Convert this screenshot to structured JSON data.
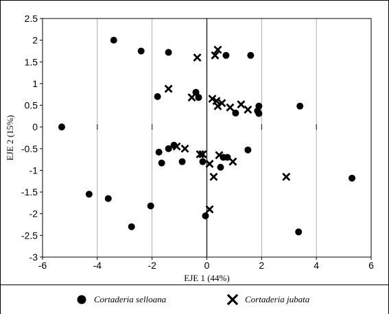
{
  "chart_data": {
    "type": "scatter",
    "xlabel": "EJE 1 (44%)",
    "ylabel": "EJE 2 (15%)",
    "xlim": [
      -6,
      6
    ],
    "ylim": [
      -3,
      2.5
    ],
    "xticks": [
      -6,
      -4,
      -2,
      0,
      2,
      4,
      6
    ],
    "yticks": [
      -3,
      -2.5,
      -2,
      -1.5,
      -1,
      -0.5,
      0,
      0.5,
      1,
      1.5,
      2,
      2.5
    ],
    "grid": true,
    "legend_position": "bottom",
    "series": [
      {
        "name": "Cortaderia selloana",
        "marker": "circle",
        "color": "#000000",
        "points": [
          [
            -3.4,
            2.0
          ],
          [
            -2.4,
            1.75
          ],
          [
            -1.4,
            1.72
          ],
          [
            0.7,
            1.65
          ],
          [
            1.6,
            1.65
          ],
          [
            -1.8,
            0.7
          ],
          [
            -0.4,
            0.8
          ],
          [
            -0.3,
            0.68
          ],
          [
            1.05,
            0.32
          ],
          [
            1.9,
            0.48
          ],
          [
            1.85,
            0.37
          ],
          [
            1.9,
            0.31
          ],
          [
            3.4,
            0.48
          ],
          [
            -5.3,
            0.0
          ],
          [
            -1.75,
            -0.58
          ],
          [
            -1.4,
            -0.5
          ],
          [
            -1.2,
            -0.42
          ],
          [
            -1.65,
            -0.83
          ],
          [
            -0.9,
            -0.8
          ],
          [
            -0.15,
            -0.8
          ],
          [
            0.5,
            -0.93
          ],
          [
            0.6,
            -0.7
          ],
          [
            0.75,
            -0.7
          ],
          [
            1.5,
            -0.53
          ],
          [
            -4.3,
            -1.55
          ],
          [
            -3.6,
            -1.65
          ],
          [
            -2.05,
            -1.82
          ],
          [
            -2.75,
            -2.3
          ],
          [
            -0.05,
            -2.05
          ],
          [
            3.35,
            -2.42
          ],
          [
            5.3,
            -1.18
          ]
        ]
      },
      {
        "name": "Cortaderia jubata",
        "marker": "x",
        "color": "#000000",
        "points": [
          [
            0.4,
            1.78
          ],
          [
            0.3,
            1.65
          ],
          [
            -0.35,
            1.6
          ],
          [
            -1.4,
            0.88
          ],
          [
            -0.55,
            0.68
          ],
          [
            0.2,
            0.65
          ],
          [
            0.35,
            0.6
          ],
          [
            0.55,
            0.55
          ],
          [
            0.4,
            0.48
          ],
          [
            0.85,
            0.45
          ],
          [
            1.25,
            0.52
          ],
          [
            1.5,
            0.4
          ],
          [
            -1.1,
            -0.45
          ],
          [
            -0.8,
            -0.5
          ],
          [
            -0.25,
            -0.63
          ],
          [
            -0.15,
            -0.63
          ],
          [
            0.1,
            -0.85
          ],
          [
            0.45,
            -0.65
          ],
          [
            0.95,
            -0.8
          ],
          [
            0.25,
            -1.15
          ],
          [
            0.1,
            -1.9
          ],
          [
            2.9,
            -1.15
          ]
        ]
      }
    ]
  }
}
